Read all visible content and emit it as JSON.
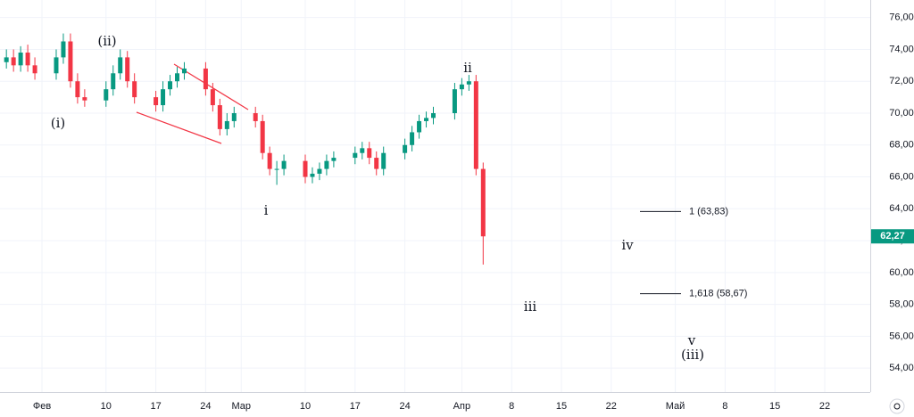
{
  "chart_data": {
    "type": "candlestick",
    "x": [
      27,
      28,
      29,
      30,
      31,
      34,
      35,
      36,
      37,
      38,
      41,
      42,
      43,
      44,
      45,
      48,
      49,
      50,
      51,
      52,
      55,
      56,
      57,
      58,
      59,
      62,
      63,
      64,
      65,
      66,
      69,
      70,
      71,
      72,
      73,
      76,
      77,
      78,
      79,
      80,
      83,
      84,
      85,
      86,
      87,
      90,
      91,
      92,
      93,
      94
    ],
    "open": [
      73.2,
      73.5,
      73.0,
      73.8,
      73.0,
      72.5,
      73.5,
      74.5,
      72.0,
      71.0,
      70.8,
      71.5,
      72.5,
      73.5,
      72.0,
      71.0,
      70.5,
      71.5,
      72.0,
      72.5,
      72.8,
      71.5,
      70.5,
      69.0,
      69.5,
      70.0,
      69.5,
      67.5,
      66.5,
      66.5,
      67.0,
      66.0,
      66.2,
      66.5,
      67.0,
      67.2,
      67.5,
      67.8,
      67.2,
      66.5,
      67.5,
      68.0,
      68.8,
      69.5,
      69.7,
      70.0,
      71.5,
      71.8,
      72.0,
      66.5
    ],
    "high": [
      74.0,
      74.0,
      74.2,
      74.3,
      73.5,
      74.0,
      75.0,
      75.0,
      72.5,
      71.5,
      72.0,
      73.0,
      74.0,
      73.9,
      72.5,
      71.4,
      72.0,
      72.4,
      72.9,
      73.2,
      73.2,
      71.9,
      70.9,
      70.0,
      70.4,
      70.4,
      69.9,
      67.9,
      67.0,
      67.4,
      67.4,
      66.6,
      66.9,
      67.4,
      67.6,
      67.9,
      68.2,
      68.2,
      67.6,
      67.9,
      68.4,
      69.2,
      69.9,
      70.1,
      70.4,
      71.9,
      72.2,
      72.4,
      72.4,
      66.9
    ],
    "low": [
      72.8,
      72.6,
      72.6,
      72.6,
      72.1,
      72.1,
      73.1,
      71.6,
      70.6,
      70.4,
      70.4,
      71.1,
      72.1,
      71.6,
      70.6,
      70.1,
      70.1,
      71.1,
      71.6,
      72.1,
      71.1,
      70.1,
      68.6,
      68.6,
      69.1,
      69.1,
      67.1,
      66.1,
      65.5,
      66.1,
      65.6,
      65.6,
      65.8,
      66.1,
      66.6,
      66.8,
      67.1,
      66.8,
      66.1,
      66.1,
      67.1,
      67.6,
      68.4,
      69.1,
      69.3,
      69.6,
      71.1,
      71.4,
      66.1,
      60.5
    ],
    "close": [
      73.5,
      73.0,
      73.8,
      73.0,
      72.5,
      73.5,
      74.5,
      72.0,
      71.0,
      70.8,
      71.5,
      72.5,
      73.5,
      72.0,
      71.0,
      70.5,
      71.5,
      72.0,
      72.5,
      72.8,
      71.5,
      70.5,
      69.0,
      69.5,
      70.0,
      69.5,
      67.5,
      66.5,
      66.5,
      67.0,
      66.0,
      66.2,
      66.5,
      67.0,
      67.2,
      67.5,
      67.8,
      67.2,
      66.5,
      67.5,
      68.0,
      68.8,
      69.5,
      69.7,
      70.0,
      71.5,
      71.8,
      72.0,
      66.5,
      62.27
    ],
    "up_color": "#089981",
    "down_color": "#f23645",
    "xlim": [
      26.1,
      148.4
    ],
    "ylim": [
      52.5,
      77.1
    ],
    "xticks": [
      {
        "value": 32,
        "label": "Фев"
      },
      {
        "value": 41,
        "label": "10"
      },
      {
        "value": 48,
        "label": "17"
      },
      {
        "value": 55,
        "label": "24"
      },
      {
        "value": 60,
        "label": "Мар"
      },
      {
        "value": 69,
        "label": "10"
      },
      {
        "value": 76,
        "label": "17"
      },
      {
        "value": 83,
        "label": "24"
      },
      {
        "value": 91,
        "label": "Апр"
      },
      {
        "value": 98,
        "label": "8"
      },
      {
        "value": 105,
        "label": "15"
      },
      {
        "value": 112,
        "label": "22"
      },
      {
        "value": 121,
        "label": "Май"
      },
      {
        "value": 128,
        "label": "8"
      },
      {
        "value": 135,
        "label": "15"
      },
      {
        "value": 142,
        "label": "22"
      }
    ],
    "yticks": [
      {
        "value": 54,
        "label": "54,00"
      },
      {
        "value": 56,
        "label": "56,00"
      },
      {
        "value": 58,
        "label": "58,00"
      },
      {
        "value": 60,
        "label": "60,00"
      },
      {
        "value": 62,
        "label": "62,00"
      },
      {
        "value": 64,
        "label": "64,00"
      },
      {
        "value": 66,
        "label": "66,00"
      },
      {
        "value": 68,
        "label": "68,00"
      },
      {
        "value": 70,
        "label": "70,00"
      },
      {
        "value": 72,
        "label": "72,00"
      },
      {
        "value": 74,
        "label": "74,00"
      },
      {
        "value": 76,
        "label": "76,00"
      }
    ],
    "grid": true,
    "last_price": {
      "value": 62.27,
      "label": "62,27"
    },
    "fib_levels": [
      {
        "value": 63.83,
        "label": "1 (63,83)"
      },
      {
        "value": 58.67,
        "label": "1,618 (58,67)"
      }
    ],
    "annotations": [
      "(i)",
      "(ii)",
      "i",
      "ii",
      "iii",
      "iv",
      "v",
      "(iii)"
    ]
  }
}
